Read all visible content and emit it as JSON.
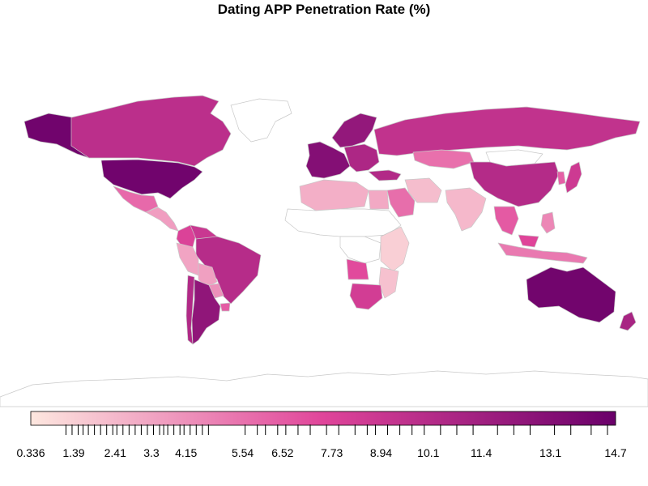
{
  "title": "Dating APP Penetration Rate (%)",
  "legend": {
    "min": 0.336,
    "max": 14.7,
    "color_low": "#fde7df",
    "color_mid": "#e0459a",
    "color_high": "#6a006a",
    "tick_labels": [
      "0.336",
      "1.39",
      "2.41",
      "3.3",
      "4.15",
      "5.54",
      "6.52",
      "7.73",
      "8.94",
      "10.1",
      "11.4",
      "13.1",
      "14.7"
    ],
    "rug_values": [
      1.2,
      1.35,
      1.5,
      1.62,
      1.75,
      1.9,
      2.05,
      2.2,
      2.35,
      2.45,
      2.6,
      2.75,
      2.9,
      3.05,
      3.2,
      3.35,
      3.5,
      3.6,
      3.7,
      3.85,
      4.0,
      4.1,
      4.25,
      4.4,
      4.55,
      4.7,
      5.6,
      5.9,
      6.1,
      6.4,
      6.6,
      6.9,
      7.2,
      7.6,
      7.9,
      8.3,
      8.6,
      8.8,
      9.1,
      9.4,
      9.7,
      10.0,
      10.4,
      10.8,
      11.2,
      11.8,
      12.2,
      12.6,
      13.2,
      13.6,
      14.1,
      14.5
    ]
  },
  "map_colors": {
    "no_data": "#ffffff",
    "border": "#c8c8c8",
    "ocean": "#ffffff"
  },
  "regions": [
    {
      "name": "usa",
      "value": 14.3
    },
    {
      "name": "canada",
      "value": 9.8
    },
    {
      "name": "alaska",
      "value": 14.3
    },
    {
      "name": "greenland",
      "value": null
    },
    {
      "name": "mexico",
      "value": 5.9
    },
    {
      "name": "central-america",
      "value": 3.6
    },
    {
      "name": "colombia",
      "value": 7.8
    },
    {
      "name": "venezuela",
      "value": 8.9
    },
    {
      "name": "brazil",
      "value": 10.1
    },
    {
      "name": "peru",
      "value": 3.3
    },
    {
      "name": "bolivia",
      "value": 3.5
    },
    {
      "name": "chile",
      "value": 10.4
    },
    {
      "name": "argentina",
      "value": 12.4
    },
    {
      "name": "paraguay",
      "value": 4.2
    },
    {
      "name": "uruguay",
      "value": 6.5
    },
    {
      "name": "western-europe",
      "value": 13.1
    },
    {
      "name": "scandinavia",
      "value": 12.2
    },
    {
      "name": "eastern-europe",
      "value": 10.6
    },
    {
      "name": "russia",
      "value": 9.4
    },
    {
      "name": "kazakhstan",
      "value": 5.6
    },
    {
      "name": "china",
      "value": 10.2
    },
    {
      "name": "mongolia",
      "value": null
    },
    {
      "name": "japan",
      "value": 8.7
    },
    {
      "name": "korea",
      "value": 6.3
    },
    {
      "name": "india",
      "value": 2.4
    },
    {
      "name": "iran",
      "value": 2.2
    },
    {
      "name": "saudi-arabia",
      "value": 5.7
    },
    {
      "name": "turkey",
      "value": 10.3
    },
    {
      "name": "egypt",
      "value": 3.1
    },
    {
      "name": "north-africa",
      "value": 2.8
    },
    {
      "name": "sahel",
      "value": null
    },
    {
      "name": "central-africa",
      "value": null
    },
    {
      "name": "angola",
      "value": 7.3
    },
    {
      "name": "east-africa",
      "value": 1.4
    },
    {
      "name": "south-africa",
      "value": 8.4
    },
    {
      "name": "mozambique",
      "value": 2.0
    },
    {
      "name": "southeast-asia",
      "value": 6.6
    },
    {
      "name": "indonesia",
      "value": 5.2
    },
    {
      "name": "malaysia",
      "value": 7.6
    },
    {
      "name": "philippines",
      "value": 4.6
    },
    {
      "name": "australia",
      "value": 14.2
    },
    {
      "name": "new-zealand",
      "value": 10.9
    },
    {
      "name": "antarctica",
      "value": null
    }
  ]
}
